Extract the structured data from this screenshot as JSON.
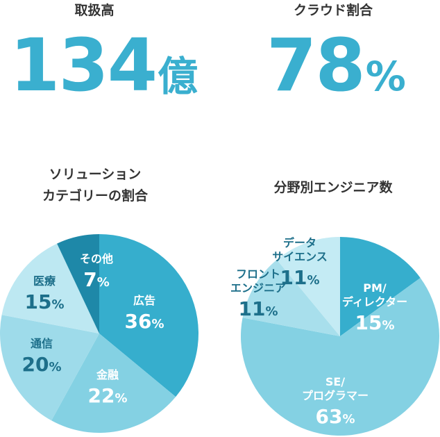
{
  "kpis": {
    "volume": {
      "label": "取扱高",
      "value": "134",
      "unit": "億"
    },
    "cloud": {
      "label": "クラウド割合",
      "value": "78",
      "unit": "%"
    }
  },
  "charts": {
    "solution_title_1": "ソリューション",
    "solution_title_2": "カテゴリーの割合",
    "engineer_title": "分野別エンジニア数"
  },
  "chart_data": [
    {
      "type": "pie",
      "title": "ソリューションカテゴリーの割合",
      "slices": [
        {
          "label": "広告",
          "value": 36,
          "color": "#36aecd",
          "text_color": "#ffffff"
        },
        {
          "label": "金融",
          "value": 22,
          "color": "#84d1e3",
          "text_color": "#ffffff"
        },
        {
          "label": "通信",
          "value": 20,
          "color": "#9edbea",
          "text_color": "#1d6f8a"
        },
        {
          "label": "医療",
          "value": 15,
          "color": "#bde8f2",
          "text_color": "#1d6f8a"
        },
        {
          "label": "その他",
          "value": 7,
          "color": "#1e88a8",
          "text_color": "#ffffff"
        }
      ]
    },
    {
      "type": "pie",
      "title": "分野別エンジニア数",
      "slices": [
        {
          "label": "PM/ ディレクター",
          "value": 15,
          "color": "#36aecd",
          "text_color": "#ffffff"
        },
        {
          "label": "SE/ プログラマー",
          "value": 63,
          "color": "#84d1e3",
          "text_color": "#ffffff"
        },
        {
          "label": "フロント エンジニア",
          "value": 11,
          "color": "#a8dfec",
          "text_color": "#1d6f8a"
        },
        {
          "label": "データ サイエンス",
          "value": 11,
          "color": "#c4ebf4",
          "text_color": "#1d6f8a"
        }
      ]
    }
  ]
}
